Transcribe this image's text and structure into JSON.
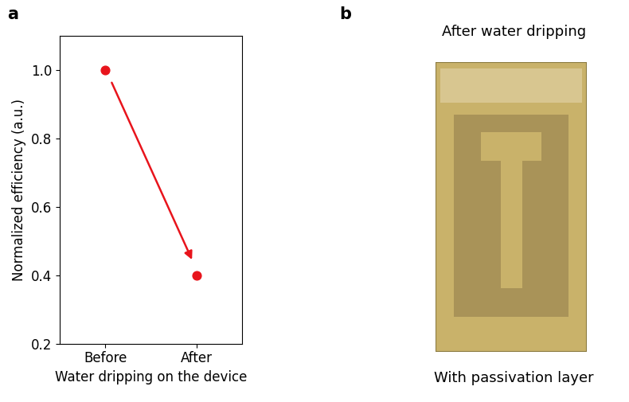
{
  "chart_data": {
    "type": "scatter",
    "categories": [
      "Before",
      "After"
    ],
    "values": [
      1.0,
      0.4
    ],
    "color": "#e8141c",
    "marker": "o",
    "xlabel": "Water dripping on the device",
    "ylabel": "Normalized efficiency (a.u.)",
    "ylim": [
      0.2,
      1.1
    ],
    "yticks": [
      0.2,
      0.4,
      0.6,
      0.8,
      1.0
    ],
    "grid": false
  },
  "panel_labels": [
    "a",
    "b"
  ],
  "photo": {
    "title": "After water dripping",
    "caption": "With passivation layer"
  }
}
